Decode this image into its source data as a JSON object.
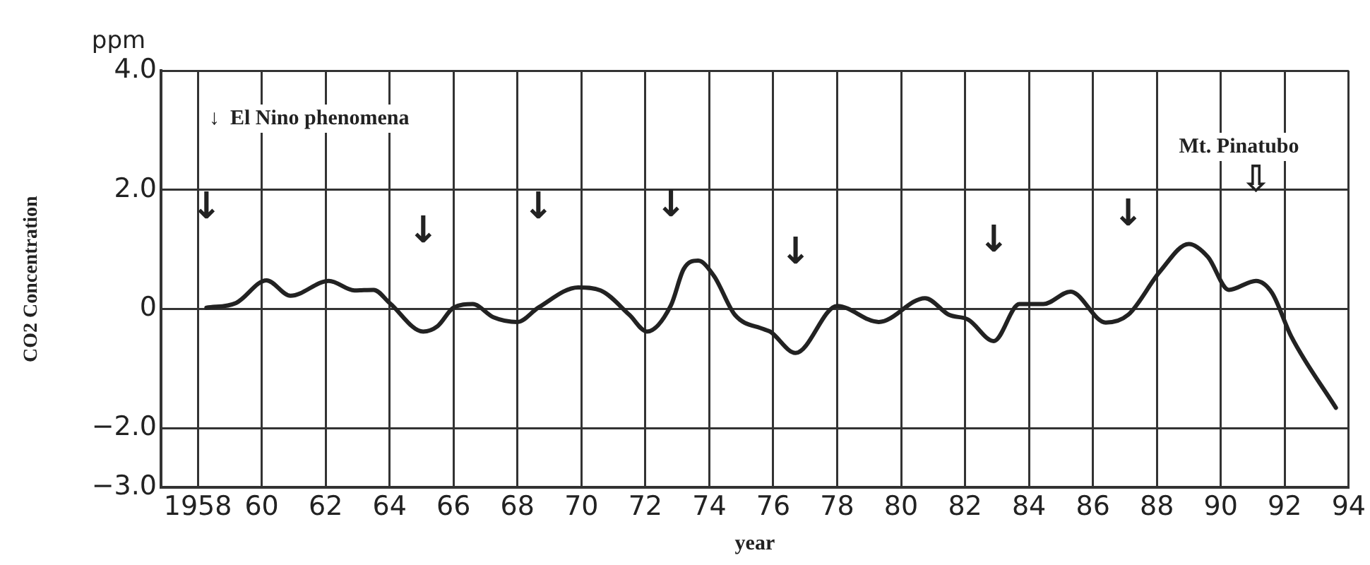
{
  "chart_data": {
    "type": "line",
    "xlabel": "year",
    "ylabel": "CO2 Concentration",
    "annotations": [
      "ppm",
      "↓  El Nino phenomena",
      {
        "text": "↓",
        "x": 1958.27,
        "y": 0.02
      },
      {
        "text": "↓",
        "x": 1965.05,
        "y": -0.38
      },
      {
        "text": "↓",
        "x": 1968.65,
        "y": 0.02
      },
      {
        "text": "↓",
        "x": 1972.8,
        "y": 0.06
      },
      {
        "text": "↓",
        "x": 1976.7,
        "y": -0.74
      },
      {
        "text": "↓",
        "x": 1982.9,
        "y": -0.54
      },
      {
        "text": "↓",
        "x": 1987.1,
        "y": -0.1
      },
      "Mt. Pinatubo",
      {
        "text": "⇩",
        "x": 1991.1,
        "y": 0.47
      }
    ],
    "series": [
      {
        "color": "#222222",
        "x": [
          1958.27,
          1959.2,
          1960.15,
          1960.9,
          1962.1,
          1962.9,
          1963.5,
          1964.0,
          1965.05,
          1965.5,
          1966.0,
          1966.6,
          1967.25,
          1968.0,
          1968.65,
          1969.9,
          1970.6,
          1971.5,
          1972.05,
          1972.8,
          1973.2,
          1973.65,
          1974.15,
          1974.8,
          1975.7,
          1975.9,
          1976.7,
          1978.0,
          1979.3,
          1980.75,
          1981.5,
          1982.1,
          1982.9,
          1983.7,
          1984.45,
          1985.3,
          1986.4,
          1987.1,
          1988.1,
          1989.0,
          1989.6,
          1990.25,
          1991.1,
          1991.6,
          1992.2,
          1993.6
        ],
        "values": [
          0.02,
          0.1,
          0.48,
          0.22,
          0.47,
          0.31,
          0.32,
          0.1,
          -0.38,
          -0.29,
          0.02,
          0.08,
          -0.14,
          -0.22,
          0.02,
          0.36,
          0.31,
          -0.1,
          -0.38,
          0.06,
          0.67,
          0.81,
          0.55,
          -0.1,
          -0.34,
          -0.38,
          -0.74,
          0.05,
          -0.22,
          0.18,
          -0.1,
          -0.18,
          -0.54,
          0.08,
          0.08,
          0.29,
          -0.23,
          -0.1,
          0.63,
          1.09,
          0.87,
          0.32,
          0.47,
          0.27,
          -0.46,
          -1.66
        ]
      }
    ],
    "xlim": [
      1956.85,
      1994
    ],
    "xticks": [
      {
        "value": 1958,
        "label": "1958"
      },
      {
        "value": 1960,
        "label": "60"
      },
      {
        "value": 1962,
        "label": "62"
      },
      {
        "value": 1964,
        "label": "64"
      },
      {
        "value": 1966,
        "label": "66"
      },
      {
        "value": 1968,
        "label": "68"
      },
      {
        "value": 1970,
        "label": "70"
      },
      {
        "value": 1972,
        "label": "72"
      },
      {
        "value": 1974,
        "label": "74"
      },
      {
        "value": 1976,
        "label": "76"
      },
      {
        "value": 1978,
        "label": "78"
      },
      {
        "value": 1980,
        "label": "80"
      },
      {
        "value": 1982,
        "label": "82"
      },
      {
        "value": 1984,
        "label": "84"
      },
      {
        "value": 1986,
        "label": "86"
      },
      {
        "value": 1988,
        "label": "88"
      },
      {
        "value": 1990,
        "label": "90"
      },
      {
        "value": 1992,
        "label": "92"
      },
      {
        "value": 1994,
        "label": "94"
      }
    ],
    "ylim": [
      -3,
      4
    ],
    "yticks": [
      {
        "value": 4,
        "label": "4.0"
      },
      {
        "value": 2,
        "label": "2.0"
      },
      0,
      {
        "value": -2,
        "label": "−2.0"
      },
      {
        "value": -3,
        "label": "−3.0"
      }
    ],
    "grid": true,
    "legend": false,
    "marker": "none",
    "line_style": "solid"
  }
}
